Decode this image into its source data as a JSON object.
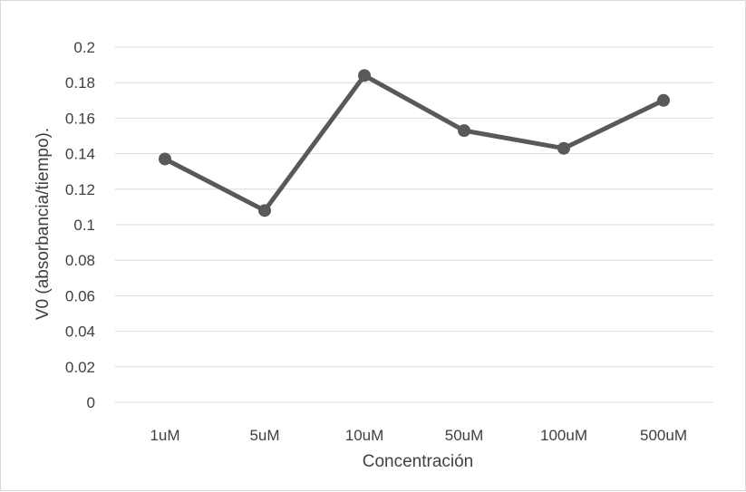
{
  "chart_data": {
    "type": "line",
    "title": "",
    "xlabel": "Concentración",
    "ylabel": "V0 (absorbancia/tiempo).",
    "categories": [
      "1uM",
      "5uM",
      "10uM",
      "50uM",
      "100uM",
      "500uM"
    ],
    "series": [
      {
        "values": [
          0.137,
          0.108,
          0.184,
          0.153,
          0.143,
          0.17
        ]
      }
    ],
    "ylim": [
      0,
      0.2
    ],
    "yticks": [
      "0",
      "0.02",
      "0.04",
      "0.06",
      "0.08",
      "0.1",
      "0.12",
      "0.14",
      "0.16",
      "0.18",
      "0.2"
    ],
    "grid": true,
    "legend": "none",
    "colors": {
      "line": "#595959",
      "grid": "#d9d9d9",
      "text": "#404040"
    }
  }
}
